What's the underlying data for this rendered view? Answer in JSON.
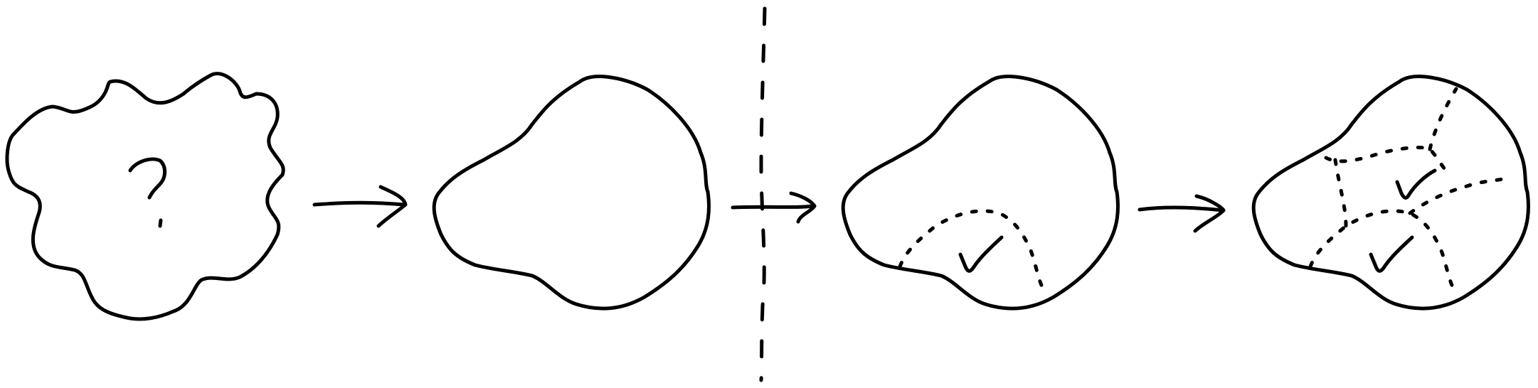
{
  "diagram": {
    "stroke_color": "#000000",
    "background_color": "#ffffff",
    "stages": [
      {
        "id": "unknown-shape",
        "icon": "question-mark"
      },
      {
        "id": "smoothed-shape"
      },
      {
        "id": "covered-shape",
        "icon": "checkmark"
      },
      {
        "id": "multi-covered-shape",
        "icon": "checkmark"
      }
    ],
    "connectors": [
      "arrow",
      "arrow",
      "arrow"
    ],
    "divider": "dashed-vertical-line"
  }
}
